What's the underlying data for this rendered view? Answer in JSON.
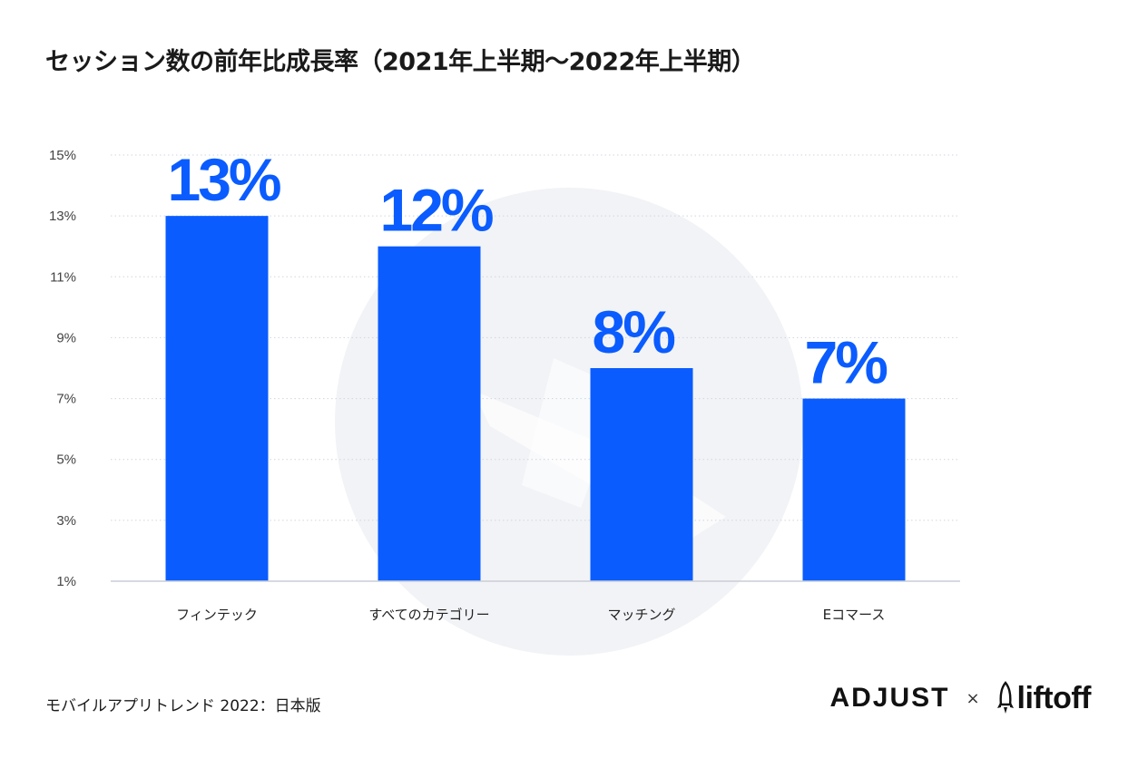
{
  "title": "セッション数の前年比成長率（2021年上半期〜2022年上半期）",
  "chart_data": {
    "type": "bar",
    "title": "セッション数の前年比成長率（2021年上半期〜2022年上半期）",
    "categories": [
      "フィンテック",
      "すべてのカテゴリー",
      "マッチング",
      "Eコマース"
    ],
    "values": [
      13,
      12,
      8,
      7
    ],
    "data_labels": [
      "13%",
      "12%",
      "8%",
      "7%"
    ],
    "y_ticks": [
      1,
      3,
      5,
      7,
      9,
      11,
      13,
      15
    ],
    "y_tick_labels": [
      "1%",
      "3%",
      "5%",
      "7%",
      "9%",
      "11%",
      "13%",
      "15%"
    ],
    "ylim": [
      1,
      15
    ],
    "xlabel": "",
    "ylabel": "",
    "grid": true,
    "bar_color": "#0a5cff"
  },
  "footer": {
    "source": "モバイルアプリトレンド 2022：日本版",
    "logo_adjust": "ADJUST",
    "separator": "×",
    "logo_liftoff": "liftoff"
  },
  "colors": {
    "bar": "#0a5cff",
    "label": "#0a5cff",
    "grid": "#cfd6df",
    "axis": "#c9ced6",
    "watermark": "#f2f3f6"
  }
}
